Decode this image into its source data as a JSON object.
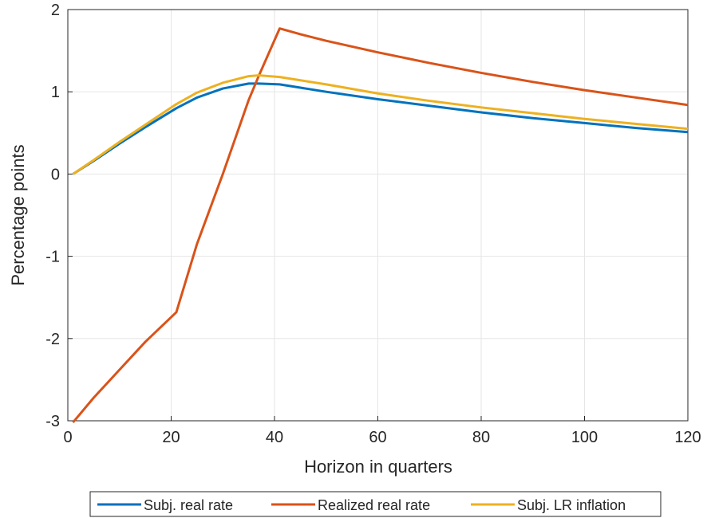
{
  "chart_data": {
    "type": "line",
    "xlabel": "Horizon in quarters",
    "ylabel": "Percentage points",
    "x": [
      1,
      5,
      10,
      15,
      21,
      25,
      30,
      35,
      37,
      41,
      45,
      50,
      60,
      70,
      80,
      90,
      100,
      110,
      120
    ],
    "series": [
      {
        "name": "Subj. real rate",
        "color": "#0072bd",
        "values": [
          0,
          0.16,
          0.37,
          0.57,
          0.8,
          0.93,
          1.04,
          1.1,
          1.1,
          1.09,
          1.05,
          1.0,
          0.91,
          0.83,
          0.75,
          0.68,
          0.62,
          0.56,
          0.51
        ]
      },
      {
        "name": "Realized real rate",
        "color": "#d95319",
        "values": [
          -3.02,
          -2.72,
          -2.38,
          -2.04,
          -1.68,
          -0.85,
          0.0,
          0.9,
          1.2,
          1.77,
          1.7,
          1.62,
          1.48,
          1.35,
          1.23,
          1.12,
          1.02,
          0.93,
          0.84
        ]
      },
      {
        "name": "Subj. LR inflation",
        "color": "#edb120",
        "values": [
          0,
          0.17,
          0.39,
          0.6,
          0.85,
          0.99,
          1.11,
          1.19,
          1.2,
          1.18,
          1.14,
          1.09,
          0.98,
          0.89,
          0.81,
          0.74,
          0.67,
          0.61,
          0.55
        ]
      }
    ],
    "xlim": [
      0,
      120
    ],
    "xticks": [
      0,
      20,
      40,
      60,
      80,
      100,
      120
    ],
    "ylim": [
      -3,
      2
    ],
    "yticks": [
      -3,
      -2,
      -1,
      0,
      1,
      2
    ],
    "grid": true,
    "legend": "bottom"
  }
}
